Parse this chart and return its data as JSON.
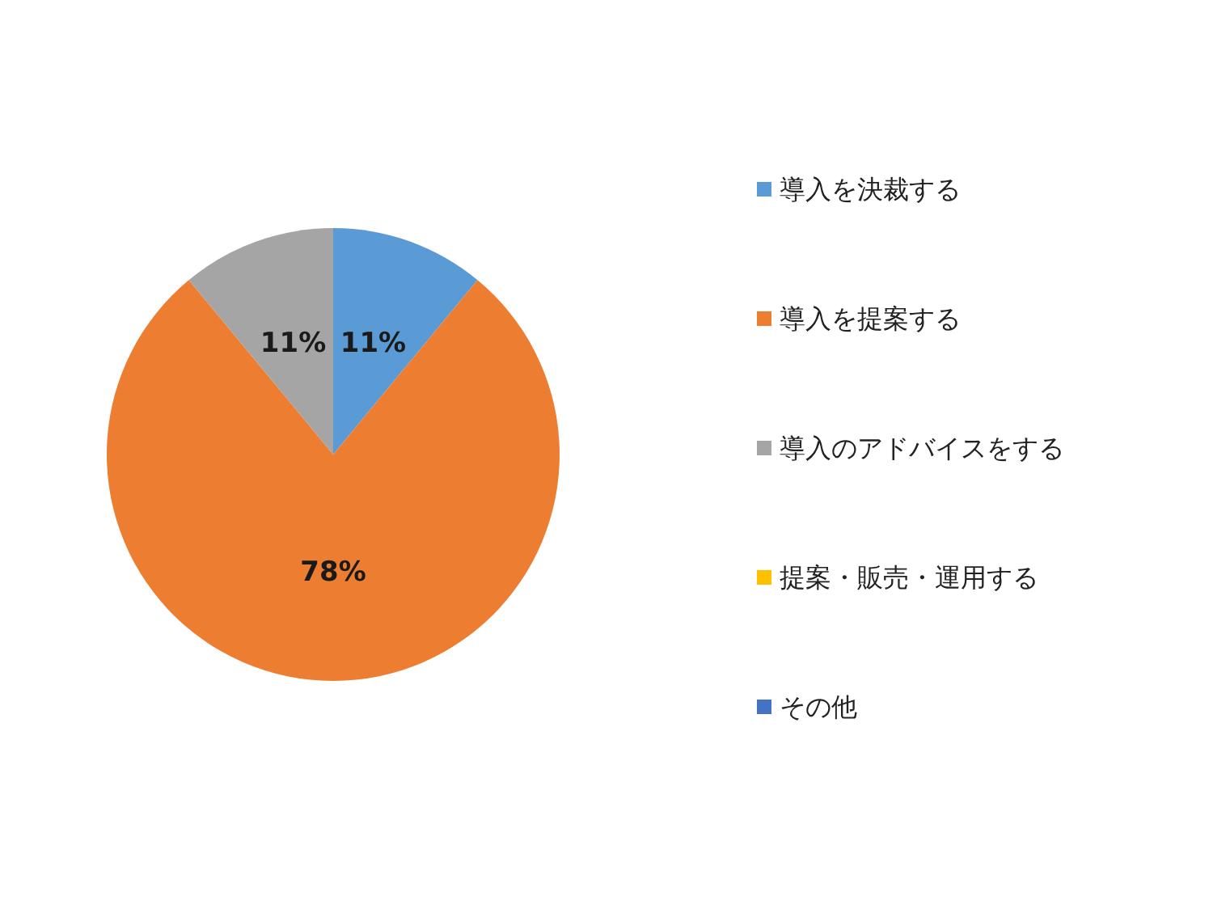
{
  "chart_data": {
    "type": "pie",
    "categories": [
      "導入を決裁する",
      "導入を提案する",
      "導入のアドバイスをする",
      "提案・販売・運用する",
      "その他"
    ],
    "values": [
      11,
      78,
      11,
      0,
      0
    ],
    "colors": [
      "#5b9bd5",
      "#ed7d31",
      "#a5a5a5",
      "#ffc000",
      "#4472c4"
    ],
    "value_labels": [
      "11%",
      "78%",
      "11%",
      null,
      null
    ],
    "legend": "right"
  }
}
